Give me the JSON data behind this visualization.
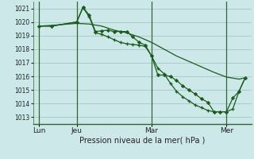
{
  "title": "Pression niveau de la mer( hPa )",
  "bg_color": "#cce8e8",
  "grid_color": "#aacccc",
  "line_color": "#1a5c1a",
  "ylim": [
    1012.5,
    1021.5
  ],
  "yticks": [
    1013,
    1014,
    1015,
    1016,
    1017,
    1018,
    1019,
    1020,
    1021
  ],
  "xlim": [
    0,
    35
  ],
  "xtick_positions": [
    1,
    7,
    19,
    31
  ],
  "xtick_labels": [
    "Lun",
    "Jeu",
    "Mar",
    "Mer"
  ],
  "vline_positions": [
    1,
    7,
    19,
    31
  ],
  "series1_x": [
    1,
    3,
    7,
    8,
    9,
    10,
    11,
    12,
    13,
    14,
    15,
    16,
    17,
    18,
    19,
    20,
    21,
    22,
    23,
    24,
    25,
    26,
    27,
    28,
    29,
    30,
    31,
    32,
    33,
    34
  ],
  "series1_y": [
    1019.7,
    1019.7,
    1020.0,
    1021.1,
    1020.5,
    1019.3,
    1019.35,
    1019.4,
    1019.3,
    1019.3,
    1019.3,
    1018.9,
    1018.5,
    1018.3,
    1017.5,
    1016.1,
    1016.1,
    1016.0,
    1015.7,
    1015.3,
    1015.0,
    1014.7,
    1014.35,
    1014.1,
    1013.4,
    1013.4,
    1013.4,
    1014.4,
    1014.9,
    1015.9
  ],
  "series2_x": [
    1,
    3,
    7,
    8,
    9,
    10,
    11,
    12,
    13,
    14,
    15,
    16,
    17,
    18,
    19,
    20,
    21,
    22,
    23,
    24,
    25,
    26,
    27,
    28,
    29,
    30,
    31,
    32,
    33,
    34
  ],
  "series2_y": [
    1019.7,
    1019.7,
    1020.0,
    1021.05,
    1020.4,
    1019.2,
    1019.1,
    1018.9,
    1018.7,
    1018.5,
    1018.4,
    1018.35,
    1018.3,
    1018.2,
    1017.5,
    1016.6,
    1016.2,
    1015.5,
    1014.9,
    1014.5,
    1014.2,
    1013.9,
    1013.7,
    1013.5,
    1013.4,
    1013.4,
    1013.4,
    1013.6,
    1014.9,
    1015.9
  ],
  "series3_x": [
    1,
    3,
    7,
    9,
    11,
    13,
    15,
    17,
    19,
    21,
    23,
    25,
    27,
    29,
    31,
    33,
    34
  ],
  "series3_y": [
    1019.7,
    1019.75,
    1019.9,
    1019.85,
    1019.7,
    1019.4,
    1019.2,
    1018.9,
    1018.5,
    1018.0,
    1017.5,
    1017.1,
    1016.7,
    1016.3,
    1015.95,
    1015.8,
    1015.9
  ]
}
